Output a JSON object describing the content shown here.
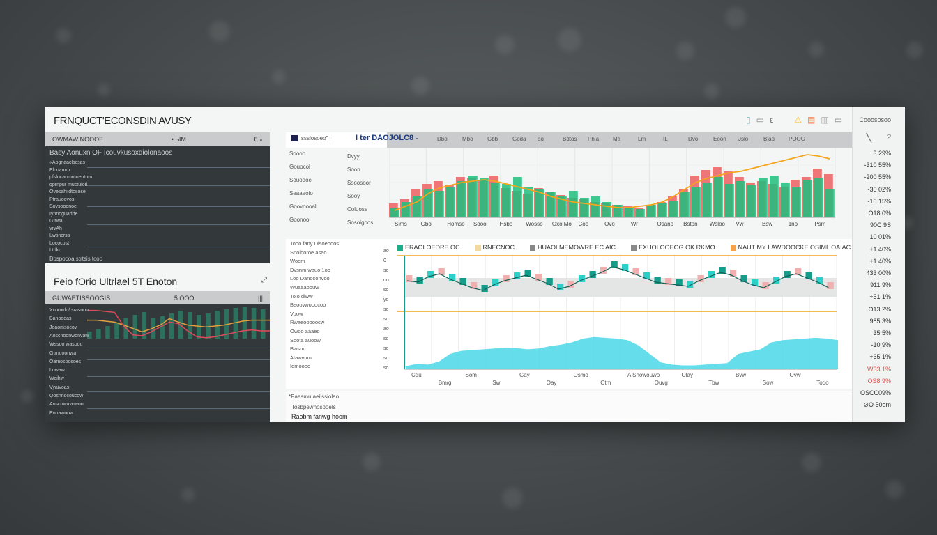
{
  "app": {
    "title": "FRNQUCT'ECONSDIN AVUSY",
    "toolbar_icons": [
      "phone-icon",
      "square-icon",
      "pen-icon",
      "warning-icon",
      "calendar-icon",
      "note-icon",
      "chat-icon"
    ]
  },
  "left_top": {
    "bar_left": "OWMAWINOOOE",
    "bar_mid": "• ЫМ",
    "bar_right": "8 ⌕",
    "header": "Basy Aonuxn OF Icouvkusoxdiolonaoos",
    "labels": [
      "«Apgnaaclscsas",
      "Elcoamm",
      "pfslocanmmneotnm",
      "qprnpur muctuiori",
      "Ovesahildtosose",
      "Ptrauoovos",
      "Sovsooonoe",
      "Iynnoguadde",
      "Gtrwa",
      "vrvAh",
      "Lwsncrss",
      "Lococost",
      "Ltdko"
    ],
    "footer": "Bbspocoa strtsis tcoo"
  },
  "left_bottom": {
    "title": "Feio fOrio Ultrlael 5T Enoton",
    "title_icon": "expand-icon",
    "bar_left": "GUWAETISSOOGIS",
    "bar_mid": "5 OOO",
    "bar_right": "|||",
    "labels": [
      "Xcooxdd/ srasoon",
      "Banaooas",
      "Jeaomsocov",
      "Aoscnoonwonvaw",
      "Wssoo wasoou",
      "Gtrnuoonwa",
      "Oamosoosoes",
      "Lnwaw",
      "Waihw",
      "Vyaivoas",
      "Qosnnocoucow",
      "Aoscowuvowoo",
      "Eooawoow"
    ],
    "chart": {
      "line_red": [
        72,
        72,
        70,
        68,
        40,
        22,
        20,
        28,
        38,
        48,
        45,
        30,
        18,
        16,
        18,
        22,
        26,
        30,
        32,
        30,
        30
      ],
      "line_yellow": [
        52,
        52,
        50,
        48,
        42,
        35,
        28,
        34,
        42,
        55,
        48,
        42,
        40,
        38,
        40,
        42,
        46,
        50,
        52,
        52,
        52
      ],
      "bars": [
        10,
        14,
        18,
        22,
        30,
        34,
        38,
        30,
        32,
        36,
        40,
        38,
        34,
        36,
        40,
        42,
        44,
        46,
        44,
        42,
        40
      ]
    }
  },
  "top_chart": {
    "legend_label": "ssslosoeo\" |",
    "title": "I ter DAOJOLC8 ▫",
    "header_ticks": [
      "Dbo",
      "Mbo",
      "Gbb",
      "Goda",
      "ao",
      "Bdtos",
      "Phia",
      "Ma",
      "Lm",
      "IL",
      "Dvo",
      "Eoon",
      "Jslo",
      "Blao",
      "POOC"
    ],
    "y_labels": [
      [
        "Soooo",
        "Dvyy"
      ],
      [
        "Gouocol",
        "Soon"
      ],
      [
        "Souodoc",
        "Ssoosoor"
      ],
      [
        "Seaaeoio",
        "Sooy"
      ],
      [
        "Goovoooal",
        "Coluose"
      ],
      [
        "Goonoo",
        "Sosoigoos"
      ]
    ],
    "x_labels": [
      "Sims",
      "Gbo",
      "Homso",
      "Sooo",
      "Hsbo",
      "Wosso",
      "Oxo Mo",
      "Coo",
      "Ovo",
      "Wr",
      "Osano",
      "Bston",
      "Wsloo",
      "Vw",
      "Bsw",
      "1no",
      "Psm"
    ],
    "green": [
      14,
      22,
      30,
      40,
      38,
      44,
      52,
      60,
      56,
      50,
      48,
      58,
      44,
      40,
      36,
      30,
      38,
      28,
      30,
      22,
      18,
      14,
      12,
      18,
      20,
      24,
      36,
      44,
      50,
      58,
      48,
      52,
      46,
      56,
      60,
      50,
      44,
      54,
      56,
      40
    ],
    "red": [
      20,
      26,
      40,
      48,
      52,
      46,
      58,
      56,
      54,
      60,
      42,
      38,
      34,
      42,
      36,
      32,
      28,
      26,
      22,
      20,
      18,
      16,
      14,
      18,
      22,
      30,
      40,
      60,
      68,
      72,
      66,
      58,
      50,
      52,
      48,
      44,
      54,
      58,
      70,
      62
    ],
    "line": [
      10,
      16,
      22,
      34,
      42,
      46,
      50,
      52,
      54,
      52,
      48,
      44,
      40,
      36,
      30,
      26,
      22,
      20,
      18,
      16,
      14,
      14,
      16,
      18,
      22,
      30,
      40,
      50,
      56,
      60,
      64,
      66,
      70,
      74,
      78,
      82,
      86,
      90,
      88,
      84
    ]
  },
  "bottom_chart": {
    "legend": [
      {
        "label": "ERAOLOEDRE OC",
        "color": "#1aae8a"
      },
      {
        "label": "RNECNOC",
        "color": "#f2d9a0"
      },
      {
        "label": "HUAOLMEMOWRE EC AIC",
        "color": "#888888"
      },
      {
        "label": "EXUOLOOEOG OK RKMO",
        "color": "#888888"
      },
      {
        "label": "NAUT MY LAWDOOCKE OSIML OAIAC",
        "color": "#f5a34b"
      }
    ],
    "y_ticks": [
      "ao",
      "0",
      "so",
      "oo",
      "so",
      "yo",
      "so",
      "so",
      "ao",
      "so",
      "so",
      "so",
      "so"
    ],
    "row_labels": [
      "Tooo fany Dlsoeodos",
      "Snolboroe asao",
      "Woom",
      "Dvsnm wauo 1oo",
      "Loo Danoconvoo",
      "Wuaaaoouw",
      "Tolo dlww",
      "Beoovwooocoo",
      "Vuow",
      "Rwaeooooocw",
      "Owoo aaaeo",
      "Soota auoow",
      "Bwsou",
      "Atawvum",
      "Idmoooo"
    ],
    "x_labels": [
      "Cdu",
      "Bm/g",
      "Som",
      "Sw",
      "Gay",
      "Oay",
      "Osmo",
      "Otm",
      "A Snowouwo",
      "Ouvg",
      "Olay",
      "Tbw",
      "Bvw",
      "Sow",
      "Ovw",
      "Todo"
    ],
    "candles": [
      50,
      48,
      56,
      60,
      52,
      46,
      40,
      36,
      44,
      50,
      54,
      58,
      52,
      46,
      38,
      42,
      50,
      56,
      62,
      70,
      66,
      60,
      54,
      48,
      46,
      44,
      42,
      50,
      56,
      62,
      58,
      50,
      44,
      40,
      48,
      56,
      60,
      54,
      48,
      40
    ],
    "area": [
      8,
      14,
      12,
      20,
      40,
      48,
      50,
      52,
      54,
      56,
      55,
      52,
      54,
      60,
      64,
      70,
      80,
      84,
      82,
      80,
      76,
      62,
      40,
      18,
      12,
      10,
      10,
      12,
      14,
      16,
      40,
      46,
      52,
      70,
      76,
      78,
      80,
      82,
      80,
      76
    ]
  },
  "footer": {
    "line1": "*Paesmu aeilssiolao",
    "line2": "Tosbpewhosooels",
    "line3": "Raobm fanwg hoom"
  },
  "right_col": {
    "header": "Cooososoo",
    "icons": [
      "slash-icon",
      "help-icon"
    ],
    "values": [
      "3 29%",
      "-310 55%",
      "-200 55%",
      "-30 02%",
      "-10 15%",
      "O18 0%",
      "90C 9S",
      "10 01%",
      "±1 40%",
      "±1 40%",
      "433 00%",
      "911 9%",
      "+51 1%",
      "O13 2%",
      "985 3%",
      "35 5%",
      "-10 9%",
      "+65 1%",
      "W33 1%",
      "OS8 9%",
      "OSCC09%",
      "⊘O 50om"
    ],
    "negative_color": "#d9534f"
  },
  "colors": {
    "green": "#1dbf7e",
    "red": "#ee4b4b",
    "orange": "#f4a51c",
    "cyan": "#4ad7e6",
    "teal": "#159c8a",
    "dark": "#33383b"
  }
}
